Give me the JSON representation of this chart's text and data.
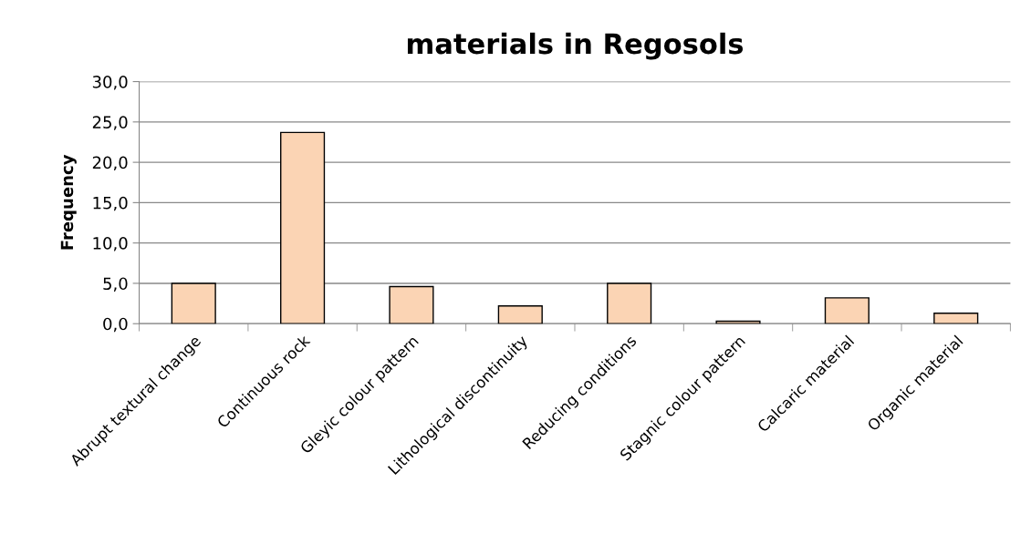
{
  "chart_data": {
    "type": "bar",
    "title": "materials in Regosols",
    "ylabel": "Frequency",
    "categories": [
      "Abrupt textural change",
      "Continuous rock",
      "Gleyic colour pattern",
      "Lithological discontinuity",
      "Reducing conditions",
      "Stagnic colour pattern",
      "Calcaric material",
      "Organic material"
    ],
    "values": [
      5.0,
      23.7,
      4.6,
      2.2,
      5.0,
      0.3,
      3.2,
      1.3
    ],
    "color": "#fbd4b4",
    "ylim": [
      0,
      30
    ],
    "yticks": [
      {
        "value": 0,
        "label": "0,0"
      },
      {
        "value": 5,
        "label": "5,0"
      },
      {
        "value": 10,
        "label": "10,0"
      },
      {
        "value": 15,
        "label": "15,0"
      },
      {
        "value": 20,
        "label": "20,0"
      },
      {
        "value": 25,
        "label": "25,0"
      },
      {
        "value": 30,
        "label": "30,0"
      }
    ],
    "grid": "y"
  }
}
